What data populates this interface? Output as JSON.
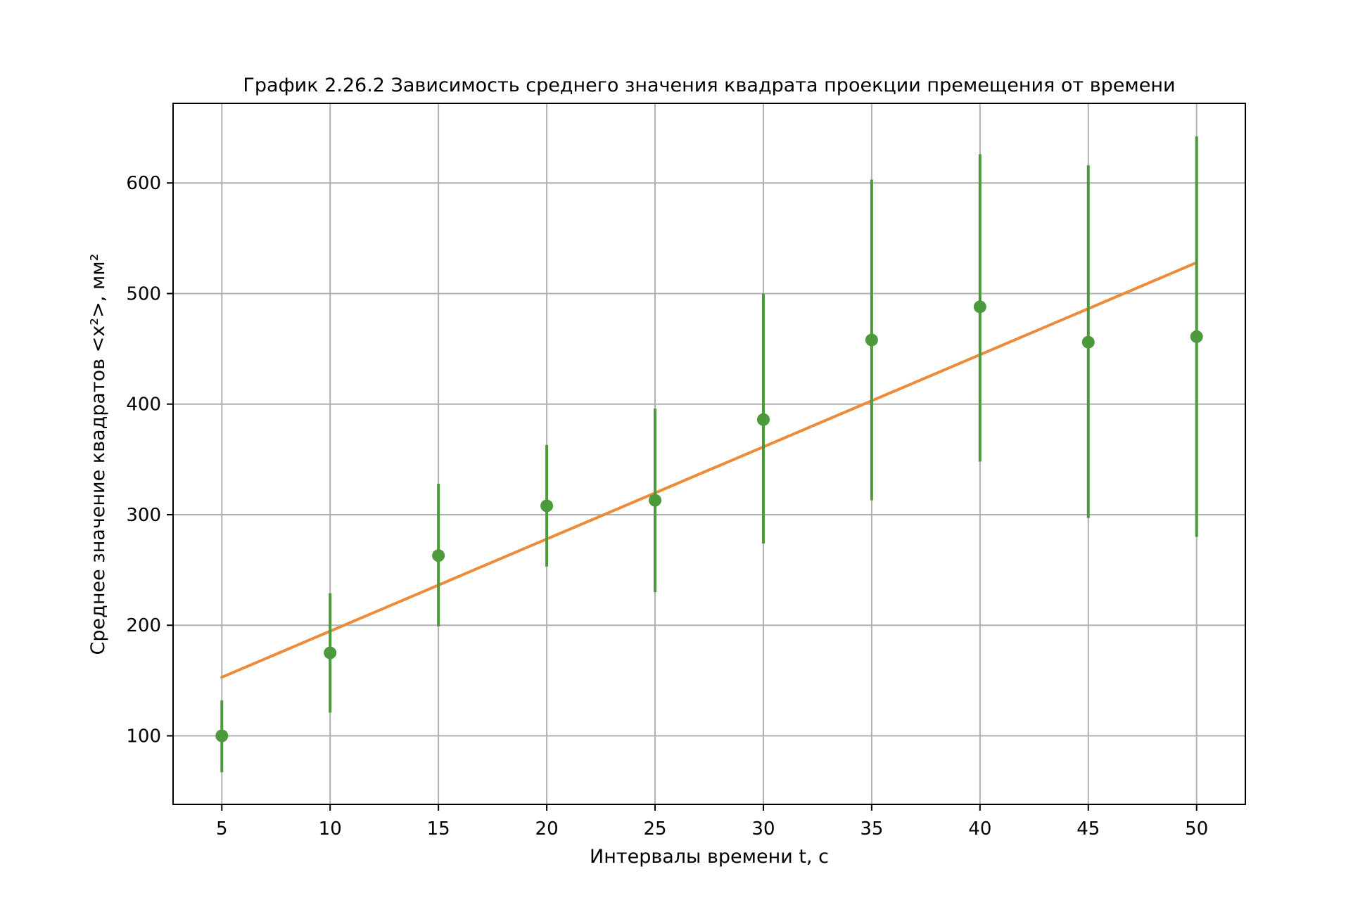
{
  "chart_data": {
    "type": "scatter",
    "title": "График 2.26.2 Зависимость среднего значения квадрата проекции премещения от времени",
    "xlabel": "Интервалы времени t, с",
    "ylabel": "Среднее значение квадратов <x²>, мм²",
    "xlim": [
      2.75,
      52.25
    ],
    "ylim": [
      38,
      672
    ],
    "xticks": [
      5,
      10,
      15,
      20,
      25,
      30,
      35,
      40,
      45,
      50
    ],
    "yticks": [
      100,
      200,
      300,
      400,
      500,
      600
    ],
    "grid": true,
    "series": [
      {
        "kind": "errorbar-points",
        "color": "#4c9a3c",
        "x": [
          5,
          10,
          15,
          20,
          25,
          30,
          35,
          40,
          45,
          50
        ],
        "y": [
          100,
          175,
          263,
          308,
          313,
          386,
          458,
          488,
          456,
          461
        ],
        "yerr_low": [
          67,
          121,
          199,
          253,
          230,
          274,
          313,
          348,
          297,
          280
        ],
        "yerr_high": [
          132,
          229,
          328,
          363,
          396,
          500,
          603,
          626,
          616,
          642
        ]
      },
      {
        "kind": "fit-line",
        "color": "#ed8b3a",
        "x": [
          5,
          50
        ],
        "y": [
          153,
          528
        ]
      }
    ]
  }
}
